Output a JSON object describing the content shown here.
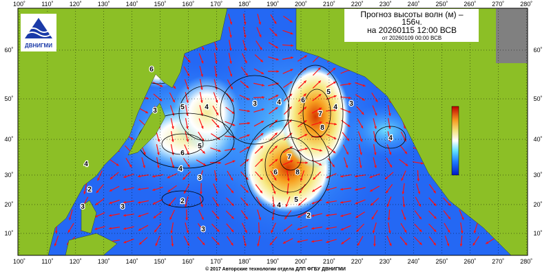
{
  "header": {
    "title": "Прогноз высоты волн (м) –",
    "lead": "156ч.",
    "valid": "на 20260115 12:00 ВСВ",
    "issued": "от 20260109 00:00 ВСВ"
  },
  "logo": "ДВНИГМИ",
  "map": {
    "longitudes": [
      "100˚",
      "110˚",
      "120˚",
      "130˚",
      "140˚",
      "150˚",
      "160˚",
      "170˚",
      "180˚",
      "190˚",
      "200˚",
      "210˚",
      "220˚",
      "230˚",
      "240˚",
      "250˚",
      "260˚",
      "270˚",
      "280˚"
    ],
    "latitudes": [
      "60˚",
      "50˚",
      "40˚",
      "30˚",
      "20˚",
      "10˚"
    ],
    "contour_labels": [
      "6",
      "5",
      "4",
      "3",
      "4",
      "5",
      "6",
      "7",
      "8",
      "4",
      "3",
      "7",
      "8",
      "6",
      "5",
      "4",
      "2",
      "4",
      "3",
      "2",
      "3",
      "3",
      "2",
      "4",
      "3",
      "4",
      "3",
      "6",
      "5"
    ]
  },
  "colorbar": [
    "10",
    "9",
    "8",
    "7",
    "6",
    "5",
    "4",
    "3",
    "2",
    "1",
    "0"
  ],
  "footer": "© 2017 Авторские технологии отдела ДЛП ФГБУ ДВНИГМИ"
}
